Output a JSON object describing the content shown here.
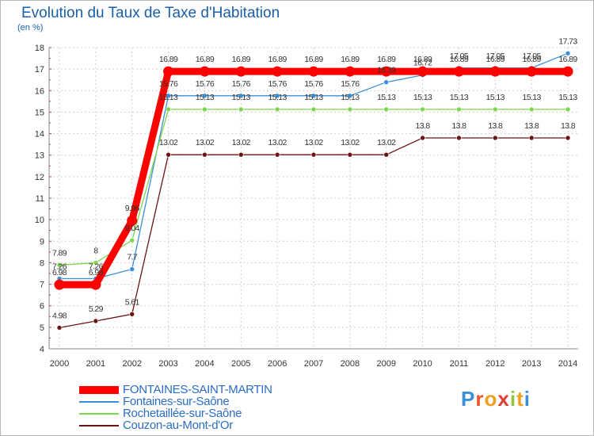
{
  "header": {
    "title": "Evolution du Taux de Taxe d'Habitation",
    "subtitle": "(en %)"
  },
  "logo": {
    "letters": [
      "P",
      "r",
      "o",
      "x",
      "i",
      "t",
      "i"
    ],
    "colors": [
      "#3b8fd8",
      "#e8562a",
      "#f0a020",
      "#e23d2e",
      "#8cc63f",
      "#f0a020",
      "#3b8fd8"
    ]
  },
  "chart_data": {
    "type": "line",
    "title": "Evolution du Taux de Taxe d'Habitation",
    "ylabel": "(en %)",
    "xlabel": "",
    "x": [
      "2000",
      "2001",
      "2002",
      "2003",
      "2004",
      "2005",
      "2006",
      "2007",
      "2008",
      "2009",
      "2010",
      "2011",
      "2012",
      "2013",
      "2014"
    ],
    "yticks": [
      "4",
      "5",
      "6",
      "7",
      "8",
      "9",
      "10",
      "11",
      "12",
      "13",
      "14",
      "15",
      "16",
      "17",
      "18"
    ],
    "ylim": [
      4,
      18
    ],
    "grid": true,
    "legend_position": "bottom-left",
    "series": [
      {
        "name": "FONTAINES-SAINT-MARTIN",
        "color": "#ff0000",
        "values": [
          6.98,
          6.98,
          9.96,
          16.89,
          16.89,
          16.89,
          16.89,
          16.89,
          16.89,
          16.89,
          16.89,
          16.89,
          16.89,
          16.89,
          16.89
        ],
        "labels": [
          "6.98",
          "6.98",
          "9.96",
          "16.89",
          "16.89",
          "16.89",
          "16.89",
          "16.89",
          "16.89",
          "16.89",
          "16.89",
          "16.89",
          "16.89",
          "16.89",
          "16.89"
        ]
      },
      {
        "name": "Fontaines-sur-Saône",
        "color": "#3b8fd8",
        "values": [
          7.26,
          7.26,
          7.7,
          15.76,
          15.76,
          15.76,
          15.76,
          15.76,
          15.76,
          16.39,
          16.72,
          17.05,
          17.05,
          17.05,
          17.73
        ],
        "labels": [
          "7.26",
          "7.26",
          "7.7",
          "15.76",
          "15.76",
          "15.76",
          "15.76",
          "15.76",
          "15.76",
          "16.39",
          "16.72",
          "17.05",
          "17.05",
          "17.05",
          "17.73"
        ]
      },
      {
        "name": "Rochetaillée-sur-Saône",
        "color": "#7dd64f",
        "values": [
          7.89,
          8,
          9.04,
          15.13,
          15.13,
          15.13,
          15.13,
          15.13,
          15.13,
          15.13,
          15.13,
          15.13,
          15.13,
          15.13,
          15.13
        ],
        "labels": [
          "7.89",
          "8",
          "9.04",
          "15.13",
          "15.13",
          "15.13",
          "15.13",
          "15.13",
          "15.13",
          "15.13",
          "15.13",
          "15.13",
          "15.13",
          "15.13",
          "15.13"
        ]
      },
      {
        "name": "Couzon-au-Mont-d'Or",
        "color": "#6b1414",
        "values": [
          4.98,
          5.29,
          5.61,
          13.02,
          13.02,
          13.02,
          13.02,
          13.02,
          13.02,
          13.02,
          13.8,
          13.8,
          13.8,
          13.8,
          13.8
        ],
        "labels": [
          "4.98",
          "5.29",
          "5.61",
          "13.02",
          "13.02",
          "13.02",
          "13.02",
          "13.02",
          "13.02",
          "13.02",
          "13.8",
          "13.8",
          "13.8",
          "13.8",
          "13.8"
        ]
      }
    ]
  }
}
